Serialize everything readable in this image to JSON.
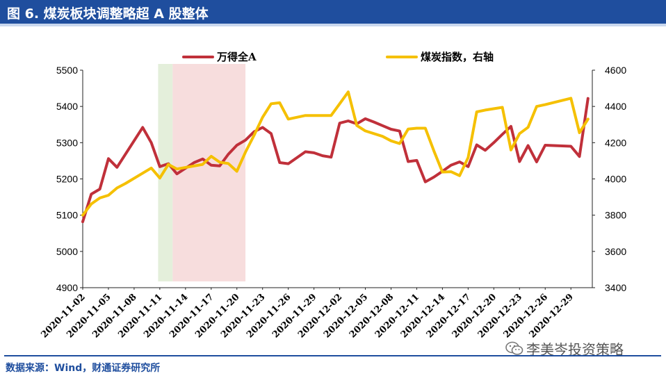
{
  "header": {
    "title": "图 6. 煤炭板块调整略超 A 股整体"
  },
  "footer": {
    "source": "数据来源：Wind，财通证券研究所"
  },
  "watermark": {
    "text": "李美岑投资策略",
    "icon": "wechat-icon"
  },
  "colors": {
    "series1": "#c0303a",
    "series2": "#f5c000",
    "band1": "#e4efdb",
    "band2": "#f7dddd",
    "brand": "#1f4e9e"
  },
  "chart_data": {
    "type": "line",
    "title": "煤炭板块调整略超 A 股整体",
    "x_tick_labels": [
      "2020-11-02",
      "2020-11-05",
      "2020-11-08",
      "2020-11-11",
      "2020-11-14",
      "2020-11-17",
      "2020-11-20",
      "2020-11-23",
      "2020-11-26",
      "2020-11-29",
      "2020-12-02",
      "2020-12-05",
      "2020-12-08",
      "2020-12-11",
      "2020-12-14",
      "2020-12-17",
      "2020-12-20",
      "2020-12-23",
      "2020-12-26",
      "2020-12-29"
    ],
    "x_range": [
      0,
      59.5
    ],
    "left_axis": {
      "min": 4900,
      "max": 5500,
      "ticks": [
        4900,
        5000,
        5100,
        5200,
        5300,
        5400,
        5500
      ]
    },
    "right_axis": {
      "min": 3400,
      "max": 4600,
      "ticks": [
        3400,
        3600,
        3800,
        4000,
        4200,
        4400,
        4600
      ]
    },
    "legend": [
      {
        "name": "万得全A",
        "color": "#c0303a"
      },
      {
        "name": "煤炭指数，右轴",
        "color": "#f5c000"
      }
    ],
    "legend_position": "top",
    "shaded_regions": [
      {
        "from": 8.8,
        "to": 10.5,
        "color": "#e4efdb"
      },
      {
        "from": 10.5,
        "to": 19.0,
        "color": "#f7dddd"
      }
    ],
    "series": [
      {
        "name": "万得全A",
        "axis": "left",
        "color": "#c0303a",
        "x": [
          0,
          1,
          2,
          3,
          4,
          7,
          8,
          9,
          10,
          11,
          13,
          14,
          15,
          16,
          17,
          18,
          19,
          20,
          21,
          22,
          23,
          24,
          26,
          27,
          28,
          29,
          30,
          31,
          32,
          33,
          34,
          35,
          36,
          37,
          38,
          39,
          40,
          41,
          42,
          43,
          44,
          45,
          46,
          47,
          48,
          49,
          50,
          51,
          52,
          53,
          54,
          55,
          57,
          58,
          59
        ],
        "values": [
          5082,
          5158,
          5172,
          5256,
          5232,
          5342,
          5300,
          5234,
          5242,
          5214,
          5245,
          5255,
          5238,
          5236,
          5268,
          5293,
          5307,
          5330,
          5342,
          5325,
          5245,
          5242,
          5275,
          5272,
          5264,
          5260,
          5354,
          5360,
          5352,
          5366,
          5357,
          5347,
          5337,
          5332,
          5248,
          5251,
          5192,
          5205,
          5221,
          5238,
          5247,
          5234,
          5294,
          5279,
          5300,
          5323,
          5345,
          5248,
          5292,
          5247,
          5293,
          5292,
          5290,
          5262,
          5422
        ]
      },
      {
        "name": "煤炭指数，右轴",
        "axis": "right",
        "color": "#f5c000",
        "x": [
          0,
          1,
          2,
          3,
          4,
          5,
          8,
          9,
          10,
          11,
          14,
          15,
          16,
          17,
          18,
          19,
          20,
          21,
          22,
          23,
          24,
          25,
          26,
          28,
          29,
          30,
          31,
          32,
          33,
          35,
          36,
          37,
          38,
          39,
          40,
          41,
          42,
          43,
          44,
          45,
          46,
          47,
          49,
          50,
          51,
          52,
          53,
          54,
          57,
          58,
          59
        ],
        "values": [
          3800,
          3862,
          3895,
          3910,
          3950,
          3975,
          4060,
          4005,
          4080,
          4055,
          4080,
          4125,
          4092,
          4085,
          4042,
          4148,
          4240,
          4340,
          4415,
          4420,
          4330,
          4340,
          4350,
          4350,
          4350,
          4415,
          4480,
          4295,
          4265,
          4235,
          4210,
          4195,
          4275,
          4280,
          4280,
          4155,
          4038,
          4040,
          4018,
          4118,
          4370,
          4380,
          4395,
          4160,
          4250,
          4285,
          4400,
          4410,
          4445,
          4255,
          4330
        ]
      }
    ]
  }
}
